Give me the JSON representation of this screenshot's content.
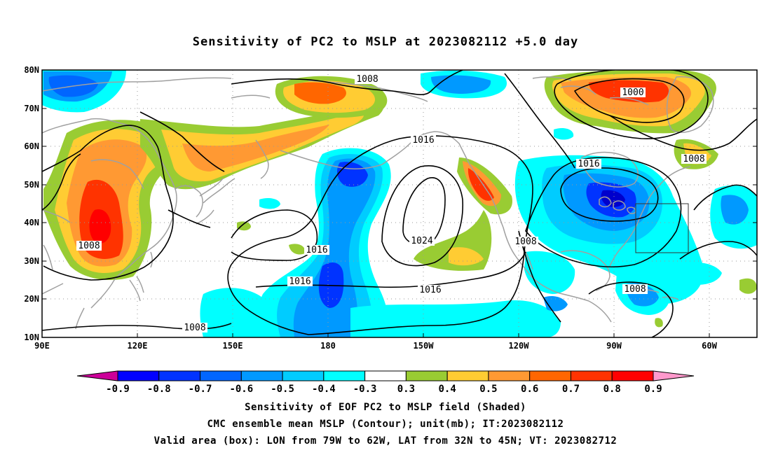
{
  "title": "Sensitivity of PC2 to MSLP at 2023082112 +5.0 day",
  "map": {
    "lat_labels": [
      "80N",
      "70N",
      "60N",
      "50N",
      "40N",
      "30N",
      "20N",
      "10N"
    ],
    "lon_labels": [
      "90E",
      "120E",
      "150E",
      "180",
      "150W",
      "120W",
      "90W",
      "60W"
    ],
    "contour_labels": [
      "1008",
      "1000",
      "1016",
      "1008",
      "1016",
      "1016",
      "1024",
      "1008",
      "1008",
      "1016",
      "1016",
      "1008",
      "1008"
    ],
    "valid_box": {
      "lon_range": [
        "79W",
        "62W"
      ],
      "lat_range": [
        "32N",
        "45N"
      ]
    },
    "colors": {
      "pos_1": "#99cc33",
      "pos_2": "#ffcc33",
      "pos_3": "#ff9933",
      "pos_4": "#ff6600",
      "pos_5": "#ff3300",
      "pos_6": "#ff0000",
      "neg_1": "#00ffff",
      "neg_2": "#00ccff",
      "neg_3": "#0099ff",
      "neg_4": "#0066ff",
      "neg_5": "#0033ff",
      "neg_6": "#0000cc",
      "coast": "#a0a0a0"
    }
  },
  "colorbar": {
    "labels": [
      "-0.9",
      "-0.8",
      "-0.7",
      "-0.6",
      "-0.5",
      "-0.4",
      "-0.3",
      "0.3",
      "0.4",
      "0.5",
      "0.6",
      "0.7",
      "0.8",
      "0.9"
    ],
    "colors": [
      "#0000aa",
      "#0000ff",
      "#0033ff",
      "#0066ff",
      "#0099ff",
      "#00ccff",
      "#00ffff",
      "#ffffff",
      "#99cc33",
      "#ffcc33",
      "#ff9933",
      "#ff6600",
      "#ff3300",
      "#ff0000"
    ],
    "low_extend_color": "#cc0099",
    "high_extend_color": "#ff99cc"
  },
  "captions": {
    "line1": "Sensitivity of EOF PC2 to MSLP field (Shaded)",
    "line2": "CMC ensemble mean MSLP (Contour); unit(mb); IT:2023082112",
    "line3": "Valid area (box): LON from 79W to 62W, LAT from 32N to 45N; VT: 2023082712"
  }
}
